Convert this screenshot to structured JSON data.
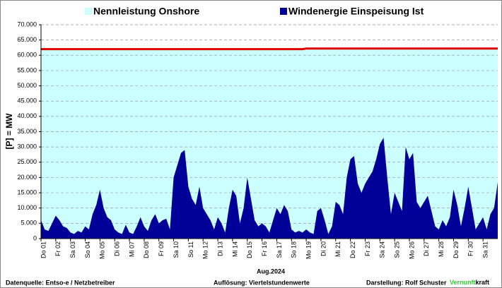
{
  "chart_data": {
    "type": "area",
    "y_label": "[P] = MW",
    "x_label": "Aug.2024",
    "x": [
      0,
      0.25,
      0.5,
      0.75,
      1,
      1.25,
      1.5,
      1.75,
      2,
      2.25,
      2.5,
      2.75,
      3,
      3.25,
      3.5,
      3.75,
      4,
      4.25,
      4.5,
      4.75,
      5,
      5.25,
      5.5,
      5.75,
      6,
      6.25,
      6.5,
      6.75,
      7,
      7.25,
      7.5,
      7.75,
      8,
      8.25,
      8.5,
      8.75,
      9,
      9.25,
      9.5,
      9.75,
      10,
      10.25,
      10.5,
      10.75,
      11,
      11.25,
      11.5,
      11.75,
      12,
      12.25,
      12.5,
      12.75,
      13,
      13.25,
      13.5,
      13.75,
      14,
      14.25,
      14.5,
      14.75,
      15,
      15.25,
      15.5,
      15.75,
      16,
      16.25,
      16.5,
      16.75,
      17,
      17.25,
      17.5,
      17.75,
      18,
      18.25,
      18.5,
      18.75,
      19,
      19.25,
      19.5,
      19.75,
      20,
      20.25,
      20.5,
      20.75,
      21,
      21.25,
      21.5,
      21.75,
      22,
      22.25,
      22.5,
      22.75,
      23,
      23.25,
      23.5,
      23.75,
      24,
      24.25,
      24.5,
      24.75,
      25,
      25.25,
      25.5,
      25.75,
      26,
      26.25,
      26.5,
      26.75,
      27,
      27.25,
      27.5,
      27.75,
      28,
      28.25,
      28.5,
      28.75,
      29,
      29.25,
      29.5,
      29.75,
      30,
      30.25,
      30.5,
      30.75,
      31
    ],
    "series": [
      {
        "name": "Nennleistung Onshore",
        "color": "#ccffff",
        "line_color": "#e00000",
        "values": [
          62000,
          62000,
          62000,
          62000,
          62000,
          62000,
          62000,
          62000,
          62000,
          62000,
          62000,
          62000,
          62000,
          62000,
          62000,
          62000,
          62000,
          62000,
          62000,
          62000,
          62000,
          62000,
          62000,
          62000,
          62000,
          62000,
          62000,
          62000,
          62000,
          62000,
          62000,
          62000,
          62000,
          62000,
          62000,
          62000,
          62000,
          62000,
          62000,
          62000,
          62000,
          62000,
          62000,
          62000,
          62000,
          62000,
          62000,
          62000,
          62000,
          62000,
          62000,
          62000,
          62000,
          62000,
          62000,
          62000,
          62000,
          62000,
          62000,
          62000,
          62000,
          62000,
          62000,
          62000,
          62000,
          62000,
          62000,
          62000,
          62000,
          62000,
          62000,
          62000,
          62200,
          62200,
          62200,
          62200,
          62200,
          62200,
          62200,
          62200,
          62200,
          62200,
          62200,
          62200,
          62200,
          62200,
          62200,
          62200,
          62200,
          62200,
          62200,
          62200,
          62200,
          62200,
          62200,
          62200,
          62200,
          62200,
          62200,
          62200,
          62200,
          62200,
          62200,
          62200,
          62200,
          62200,
          62200,
          62200,
          62200,
          62200,
          62200,
          62200,
          62200,
          62200,
          62200,
          62200,
          62200,
          62200,
          62200,
          62200,
          62200,
          62200,
          62200,
          62200,
          62200
        ]
      },
      {
        "name": "Windenergie Einspeisung Ist",
        "color": "#000099",
        "values": [
          6000,
          3000,
          2500,
          5000,
          7500,
          6000,
          4000,
          3500,
          2000,
          1500,
          2500,
          2000,
          4000,
          3000,
          8000,
          11000,
          16000,
          10000,
          7000,
          6000,
          3000,
          2000,
          1500,
          4500,
          2000,
          1500,
          4000,
          7000,
          4000,
          2500,
          6000,
          8000,
          5000,
          6000,
          6500,
          3000,
          20000,
          24000,
          28000,
          29000,
          17000,
          13000,
          11000,
          17000,
          10000,
          8000,
          6000,
          3000,
          7000,
          5000,
          2000,
          10000,
          16000,
          14000,
          5000,
          10000,
          20000,
          13000,
          6000,
          4000,
          5000,
          4000,
          2000,
          6000,
          10000,
          8000,
          11000,
          9000,
          3000,
          2000,
          2500,
          2000,
          3000,
          2000,
          1500,
          9000,
          10000,
          6000,
          1500,
          4000,
          12000,
          11000,
          8000,
          20000,
          26000,
          27000,
          18000,
          15000,
          18000,
          20000,
          22000,
          26000,
          31000,
          33000,
          20000,
          8000,
          15000,
          12000,
          9000,
          30000,
          26000,
          28000,
          12000,
          10000,
          12000,
          14000,
          9000,
          4000,
          3000,
          6000,
          4000,
          7000,
          16000,
          11000,
          4000,
          10000,
          17000,
          10000,
          3000,
          5000,
          7000,
          3000,
          8000,
          10000,
          18500
        ]
      }
    ],
    "xlim": [
      0,
      31
    ],
    "xticks": [
      {
        "value": 0,
        "label": "Do 01"
      },
      {
        "value": 1,
        "label": "Fr 02"
      },
      {
        "value": 2,
        "label": "Sa 03"
      },
      {
        "value": 3,
        "label": "So 04"
      },
      {
        "value": 4,
        "label": "Mo 05"
      },
      {
        "value": 5,
        "label": "Di 06"
      },
      {
        "value": 6,
        "label": "Mi 07"
      },
      {
        "value": 7,
        "label": "Do 08"
      },
      {
        "value": 8,
        "label": "Fr 09"
      },
      {
        "value": 9,
        "label": "Sa 10"
      },
      {
        "value": 10,
        "label": "So 11"
      },
      {
        "value": 11,
        "label": "Mo 12"
      },
      {
        "value": 12,
        "label": "Di 13"
      },
      {
        "value": 13,
        "label": "Mi 14"
      },
      {
        "value": 14,
        "label": "Do 15"
      },
      {
        "value": 15,
        "label": "Fr 16"
      },
      {
        "value": 16,
        "label": "Sa 17"
      },
      {
        "value": 17,
        "label": "So 18"
      },
      {
        "value": 18,
        "label": "Mo 19"
      },
      {
        "value": 19,
        "label": "Di 20"
      },
      {
        "value": 20,
        "label": "Mi 21"
      },
      {
        "value": 21,
        "label": "Do 22"
      },
      {
        "value": 22,
        "label": "Fr 23"
      },
      {
        "value": 23,
        "label": "Sa 24"
      },
      {
        "value": 24,
        "label": "So 25"
      },
      {
        "value": 25,
        "label": "Mo 26"
      },
      {
        "value": 26,
        "label": "Di 27"
      },
      {
        "value": 27,
        "label": "Mi 28"
      },
      {
        "value": 28,
        "label": "Do 29"
      },
      {
        "value": 29,
        "label": "Fr 30"
      },
      {
        "value": 30,
        "label": "Sa 31"
      }
    ],
    "ylim": [
      0,
      70000
    ],
    "yticks": [
      {
        "value": 0,
        "label": "0"
      },
      {
        "value": 5000,
        "label": "5.000"
      },
      {
        "value": 10000,
        "label": "10.000"
      },
      {
        "value": 15000,
        "label": "15.000"
      },
      {
        "value": 20000,
        "label": "20.000"
      },
      {
        "value": 25000,
        "label": "25.000"
      },
      {
        "value": 30000,
        "label": "30.000"
      },
      {
        "value": 35000,
        "label": "35.000"
      },
      {
        "value": 40000,
        "label": "40.000"
      },
      {
        "value": 45000,
        "label": "45.000"
      },
      {
        "value": 50000,
        "label": "50.000"
      },
      {
        "value": 55000,
        "label": "55.000"
      },
      {
        "value": 60000,
        "label": "60.000"
      },
      {
        "value": 65000,
        "label": "65.000"
      },
      {
        "value": 70000,
        "label": "70.000"
      }
    ],
    "grid": true,
    "legend": "top"
  },
  "footer": {
    "source": "Datenquelle:  Entso-e  / Netzbetreiber",
    "resolution": "Auflösung: Viertelstundenwerte",
    "author": "Darstellung:  Rolf Schuster",
    "brand_a": "Vernunft",
    "brand_b": "kraft"
  }
}
